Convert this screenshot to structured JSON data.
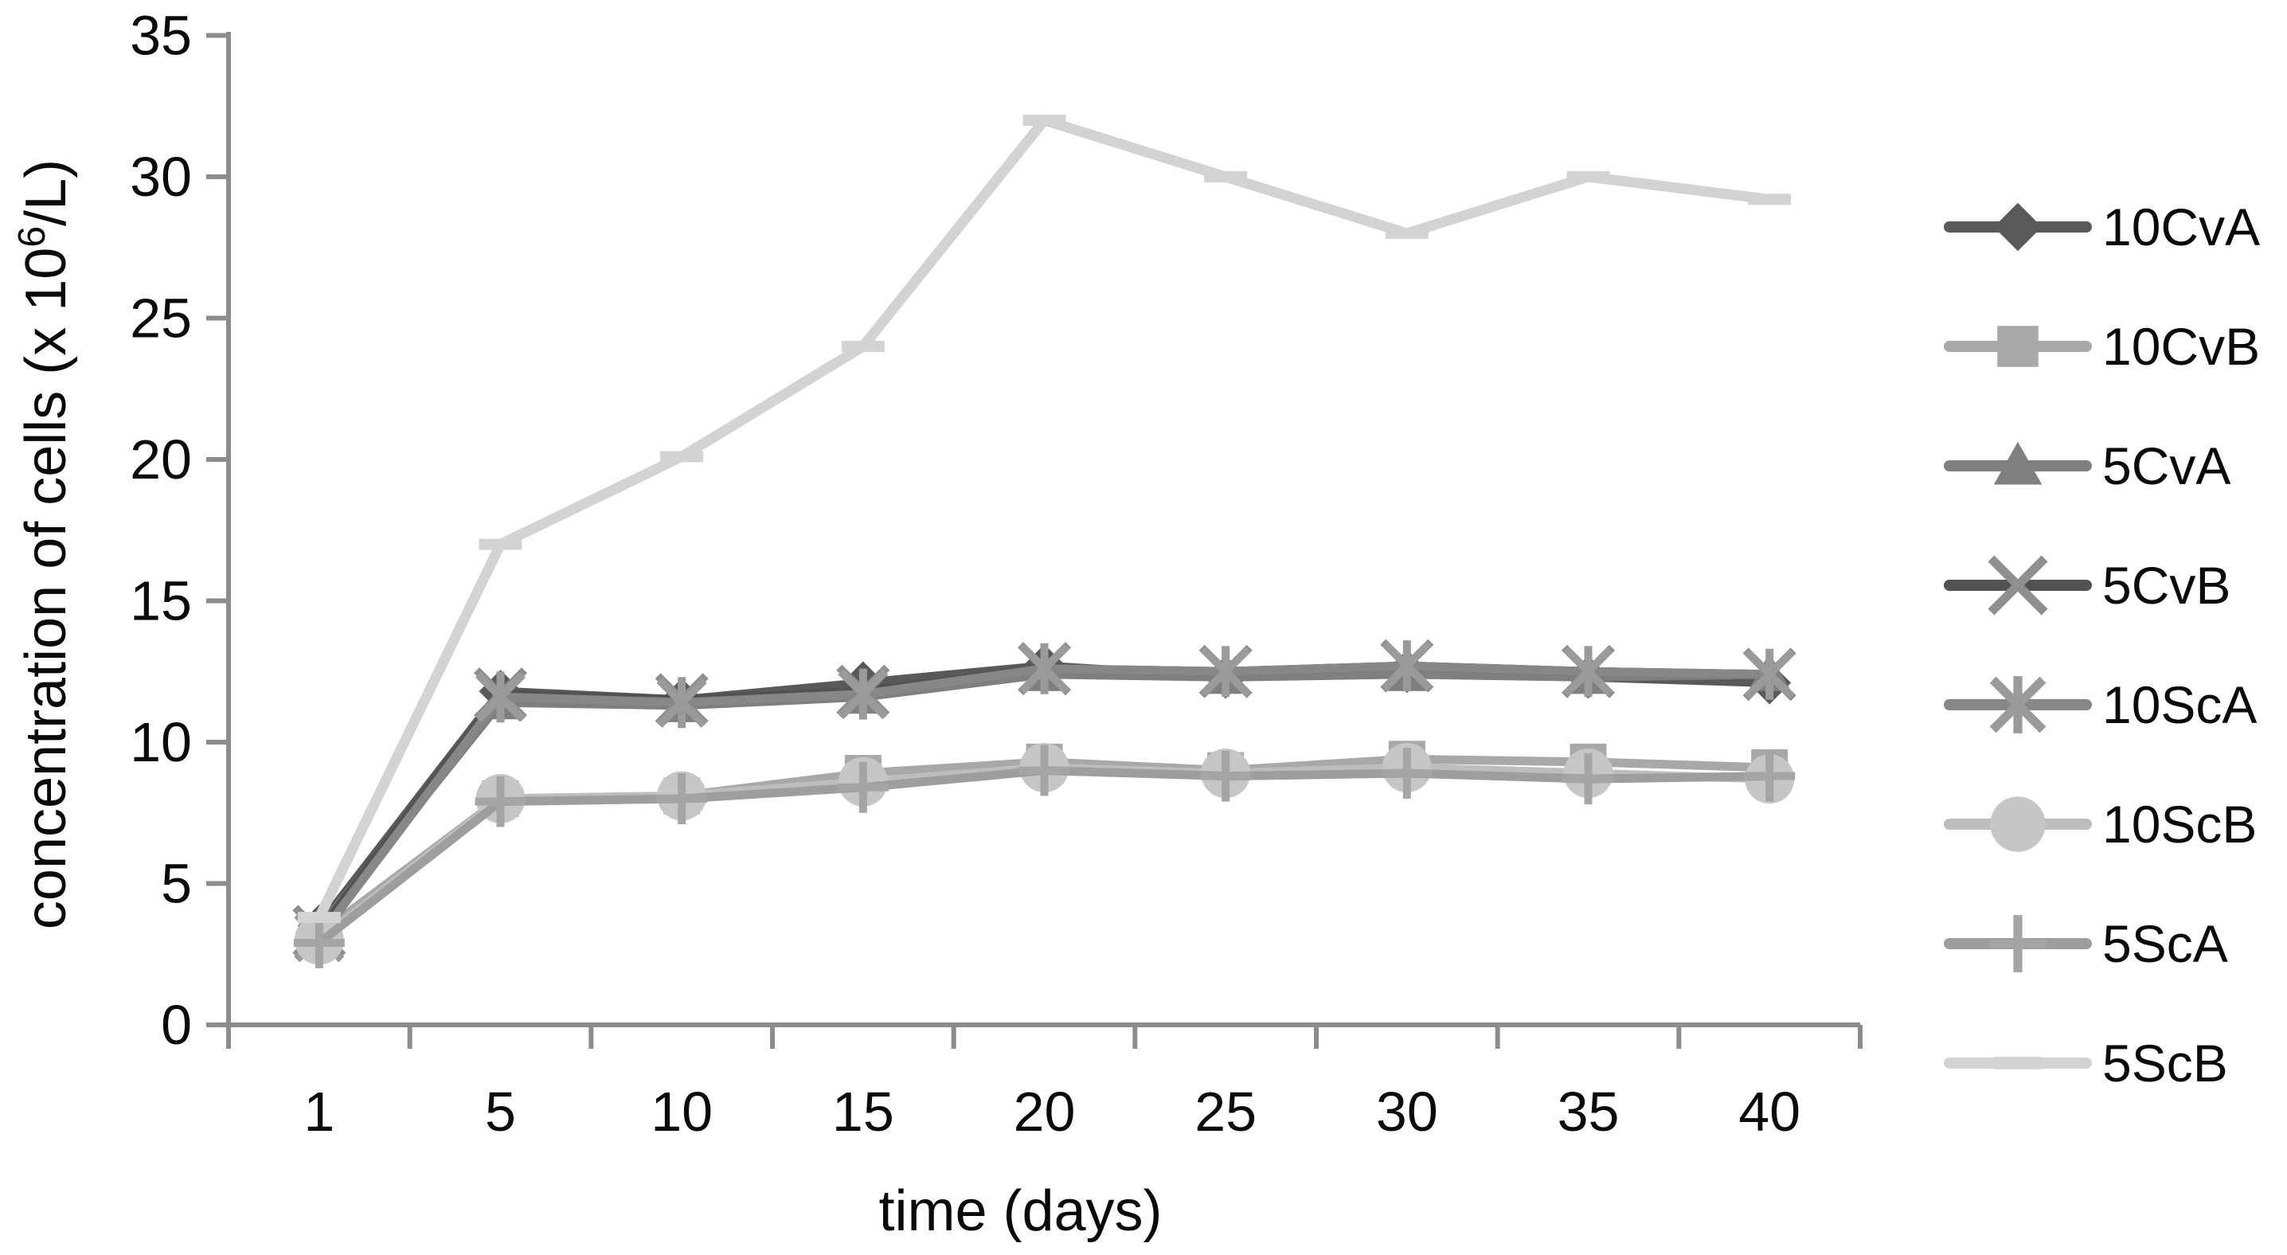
{
  "chart_data": {
    "type": "line",
    "title": "",
    "xlabel": "time (days)",
    "ylabel_text": "concentration of cells (x 10⁶/L)",
    "ylabel_parts": {
      "prefix": "concentration of cells (x 10",
      "superscript": "6",
      "suffix": "/L)"
    },
    "categories": [
      1,
      5,
      10,
      15,
      20,
      25,
      30,
      35,
      40
    ],
    "x_tick_labels": [
      "1",
      "5",
      "10",
      "15",
      "20",
      "25",
      "30",
      "35",
      "40"
    ],
    "y_ticks": [
      0,
      5,
      10,
      15,
      20,
      25,
      30,
      35
    ],
    "y_tick_labels": [
      "0",
      "5",
      "10",
      "15",
      "20",
      "25",
      "30",
      "35"
    ],
    "ylim": [
      0,
      35
    ],
    "grid": false,
    "legend_position": "right",
    "axis_color": "#8c8c8c",
    "text_color": "#0a0a0a",
    "series": [
      {
        "name": "10CvA",
        "marker": "diamond",
        "line_color": "#595959",
        "marker_color": "#595959",
        "line_width": 11,
        "values": [
          3.5,
          11.8,
          11.5,
          12.1,
          12.7,
          12.3,
          12.5,
          12.3,
          12.1
        ]
      },
      {
        "name": "10CvB",
        "marker": "square",
        "line_color": "#a8a8a8",
        "marker_color": "#a8a8a8",
        "line_width": 11,
        "values": [
          3.2,
          8.0,
          8.1,
          8.9,
          9.3,
          9.0,
          9.4,
          9.3,
          9.1
        ]
      },
      {
        "name": "5CvA",
        "marker": "triangle",
        "line_color": "#7f7f7f",
        "marker_color": "#7f7f7f",
        "line_width": 11,
        "values": [
          3.4,
          11.4,
          11.3,
          11.6,
          12.4,
          12.3,
          12.4,
          12.3,
          12.4
        ]
      },
      {
        "name": "5CvB",
        "marker": "x",
        "line_color": "#525252",
        "marker_color": "#8f8f8f",
        "line_width": 11,
        "values": [
          3.3,
          11.7,
          11.5,
          11.8,
          12.6,
          12.5,
          12.7,
          12.5,
          12.4
        ]
      },
      {
        "name": "10ScA",
        "marker": "asterisk",
        "line_color": "#878787",
        "marker_color": "#9a9a9a",
        "line_width": 11,
        "values": [
          3.1,
          11.6,
          11.4,
          11.7,
          12.6,
          12.5,
          12.7,
          12.5,
          12.4
        ]
      },
      {
        "name": "10ScB",
        "marker": "circle",
        "line_color": "#bdbdbd",
        "marker_color": "#c6c6c6",
        "line_width": 11,
        "values": [
          3.0,
          8.0,
          8.1,
          8.6,
          9.1,
          8.9,
          9.1,
          8.9,
          8.7
        ]
      },
      {
        "name": "5ScA",
        "marker": "plus",
        "line_color": "#9e9e9e",
        "marker_color": "#a5a5a5",
        "line_width": 11,
        "values": [
          2.9,
          7.9,
          8.0,
          8.4,
          9.0,
          8.8,
          8.9,
          8.7,
          8.8
        ]
      },
      {
        "name": "5ScB",
        "marker": "dash",
        "line_color": "#d3d3d3",
        "marker_color": "#d3d3d3",
        "line_width": 13,
        "values": [
          3.8,
          17.0,
          20.1,
          24.0,
          32.0,
          30.0,
          28.0,
          30.0,
          29.2
        ]
      }
    ]
  }
}
